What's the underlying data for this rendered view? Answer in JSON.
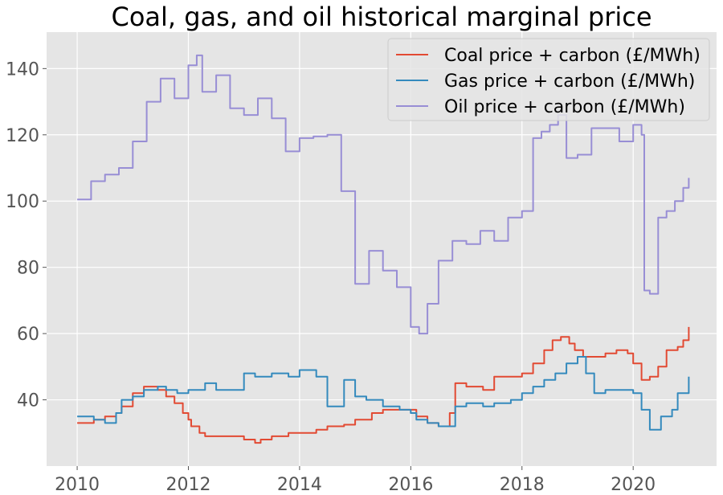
{
  "chart_data": {
    "type": "line",
    "title": "Coal, gas, and oil historical marginal price",
    "xlabel": "",
    "ylabel": "",
    "xlim": [
      2009.45,
      2021.5
    ],
    "ylim": [
      20,
      151
    ],
    "x_ticks": [
      2010,
      2012,
      2014,
      2016,
      2018,
      2020
    ],
    "x_tick_labels": [
      "2010",
      "2012",
      "2014",
      "2016",
      "2018",
      "2020"
    ],
    "y_ticks": [
      40,
      60,
      80,
      100,
      120,
      140
    ],
    "y_tick_labels": [
      "40",
      "60",
      "80",
      "100",
      "120",
      "140"
    ],
    "grid": true,
    "legend_position": "top-right",
    "background": "#E5E5E5",
    "series": [
      {
        "name": "Coal price + carbon (£/MWh)",
        "color": "#E24A33",
        "x": [
          2010.0,
          2010.3,
          2010.5,
          2010.7,
          2010.8,
          2011.0,
          2011.2,
          2011.45,
          2011.6,
          2011.75,
          2011.9,
          2012.0,
          2012.05,
          2012.2,
          2012.3,
          2012.5,
          2012.8,
          2013.0,
          2013.2,
          2013.3,
          2013.5,
          2013.8,
          2014.0,
          2014.3,
          2014.5,
          2014.8,
          2015.0,
          2015.3,
          2015.5,
          2015.8,
          2016.0,
          2016.1,
          2016.3,
          2016.5,
          2016.7,
          2016.8,
          2017.0,
          2017.3,
          2017.5,
          2017.8,
          2018.0,
          2018.2,
          2018.4,
          2018.55,
          2018.7,
          2018.85,
          2018.95,
          2019.1,
          2019.3,
          2019.5,
          2019.7,
          2019.9,
          2020.0,
          2020.15,
          2020.2,
          2020.3,
          2020.45,
          2020.6,
          2020.8,
          2020.9,
          2021.0
        ],
        "y": [
          33,
          34,
          35,
          36,
          38,
          42,
          44,
          43,
          41,
          39,
          36,
          34,
          32,
          30,
          29,
          29,
          29,
          28,
          27,
          28,
          29,
          30,
          30,
          31,
          32,
          32.5,
          34,
          36,
          37,
          37,
          37,
          35,
          33,
          32,
          36,
          45,
          44,
          43,
          47,
          47,
          48,
          51,
          55,
          58,
          59,
          57,
          55,
          53,
          53,
          54,
          55,
          54,
          51,
          46,
          46,
          47,
          50,
          55,
          56,
          58,
          62
        ]
      },
      {
        "name": "Gas price + carbon (£/MWh)",
        "color": "#348ABD",
        "x": [
          2010.0,
          2010.3,
          2010.5,
          2010.7,
          2010.8,
          2011.0,
          2011.2,
          2011.45,
          2011.6,
          2011.8,
          2012.0,
          2012.3,
          2012.5,
          2012.8,
          2013.0,
          2013.2,
          2013.5,
          2013.8,
          2014.0,
          2014.3,
          2014.5,
          2014.8,
          2015.0,
          2015.2,
          2015.5,
          2015.8,
          2016.0,
          2016.1,
          2016.3,
          2016.5,
          2016.8,
          2017.0,
          2017.3,
          2017.5,
          2017.8,
          2018.0,
          2018.2,
          2018.4,
          2018.6,
          2018.8,
          2019.0,
          2019.15,
          2019.3,
          2019.5,
          2019.7,
          2019.9,
          2020.0,
          2020.15,
          2020.3,
          2020.5,
          2020.7,
          2020.8,
          2021.0
        ],
        "y": [
          35,
          34,
          33,
          36,
          40,
          41,
          43,
          44,
          43,
          42,
          43,
          45,
          43,
          43,
          48,
          47,
          48,
          47,
          49,
          47,
          38,
          46,
          41,
          40,
          38,
          37,
          36,
          34,
          33,
          32,
          38,
          39,
          38,
          39,
          40,
          42,
          44,
          46,
          48,
          51,
          53,
          48,
          42,
          43,
          43,
          43,
          42,
          37,
          31,
          35,
          37,
          42,
          47
        ]
      },
      {
        "name": "Oil price + carbon (£/MWh)",
        "color": "#988ED5",
        "x": [
          2010.0,
          2010.25,
          2010.5,
          2010.75,
          2011.0,
          2011.25,
          2011.5,
          2011.75,
          2012.0,
          2012.15,
          2012.25,
          2012.5,
          2012.75,
          2013.0,
          2013.25,
          2013.5,
          2013.75,
          2014.0,
          2014.25,
          2014.5,
          2014.75,
          2015.0,
          2015.25,
          2015.5,
          2015.75,
          2016.0,
          2016.15,
          2016.3,
          2016.5,
          2016.75,
          2017.0,
          2017.25,
          2017.5,
          2017.75,
          2018.0,
          2018.2,
          2018.35,
          2018.5,
          2018.65,
          2018.8,
          2019.0,
          2019.25,
          2019.5,
          2019.75,
          2020.0,
          2020.15,
          2020.2,
          2020.3,
          2020.45,
          2020.6,
          2020.75,
          2020.9,
          2021.0
        ],
        "y": [
          100.5,
          106,
          108,
          110,
          118,
          130,
          137,
          131,
          141,
          144,
          133,
          138,
          128,
          126,
          131,
          125,
          115,
          119,
          119.5,
          120,
          103,
          75,
          85,
          79,
          74,
          62,
          60,
          69,
          82,
          88,
          87,
          91,
          88,
          95,
          97,
          119,
          121,
          123,
          126,
          113,
          114,
          122,
          122,
          118,
          123,
          120,
          73,
          72,
          95,
          97,
          100,
          104,
          107
        ]
      }
    ]
  }
}
